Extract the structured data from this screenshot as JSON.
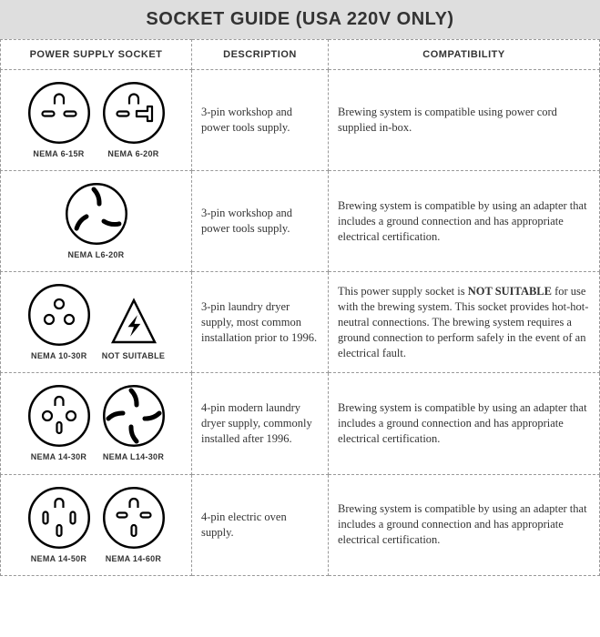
{
  "title": "SOCKET GUIDE (USA 220V ONLY)",
  "colors": {
    "headerBg": "#dedede",
    "border": "#999999",
    "stroke": "#000000",
    "bg": "#ffffff",
    "text": "#333333"
  },
  "typography": {
    "titleFont": "Arial Black",
    "bodyFont": "Georgia",
    "titleSize": 20,
    "headerSize": 11,
    "bodySize": 12.5,
    "labelSize": 9
  },
  "headers": [
    "POWER SUPPLY SOCKET",
    "DESCRIPTION",
    "COMPATIBILITY"
  ],
  "rows": [
    {
      "sockets": [
        {
          "kind": "nema-6-15r",
          "label": "NEMA 6-15R"
        },
        {
          "kind": "nema-6-20r",
          "label": "NEMA 6-20R"
        }
      ],
      "description": "3-pin workshop and power tools supply.",
      "compatibility": "Brewing system is compatible using power cord supplied in-box."
    },
    {
      "sockets": [
        {
          "kind": "nema-l6-20r",
          "label": "NEMA L6-20R"
        }
      ],
      "description": "3-pin workshop and power tools supply.",
      "compatibility": "Brewing system is compatible by using an adapter that includes a ground connection and has appropriate electrical certification."
    },
    {
      "sockets": [
        {
          "kind": "nema-10-30r",
          "label": "NEMA 10-30R"
        },
        {
          "kind": "not-suitable",
          "label": "NOT SUITABLE"
        }
      ],
      "description": "3-pin laundry dryer supply, most common installation prior to 1996.",
      "compatibility_pre": "This power supply socket is ",
      "compatibility_bold": "NOT SUITABLE",
      "compatibility_post": " for use with the brewing system. This socket provides hot-hot-neutral connections. The brewing system requires a ground connection to perform safely in the event of an electrical fault."
    },
    {
      "sockets": [
        {
          "kind": "nema-14-30r",
          "label": "NEMA 14-30R"
        },
        {
          "kind": "nema-l14-30r",
          "label": "NEMA L14-30R"
        }
      ],
      "description": "4-pin modern laundry dryer supply, commonly installed after 1996.",
      "compatibility": "Brewing system is compatible by using an adapter that includes a ground connection and has appropriate electrical certification."
    },
    {
      "sockets": [
        {
          "kind": "nema-14-50r",
          "label": "NEMA 14-50R"
        },
        {
          "kind": "nema-14-60r",
          "label": "NEMA 14-60R"
        }
      ],
      "description": "4-pin electric oven supply.",
      "compatibility": "Brewing system is compatible by using an adapter that includes a ground connection and has appropriate electrical certification."
    }
  ],
  "svg": {
    "size": 70,
    "labelSize": 60,
    "strokeWidth": 2.5
  }
}
